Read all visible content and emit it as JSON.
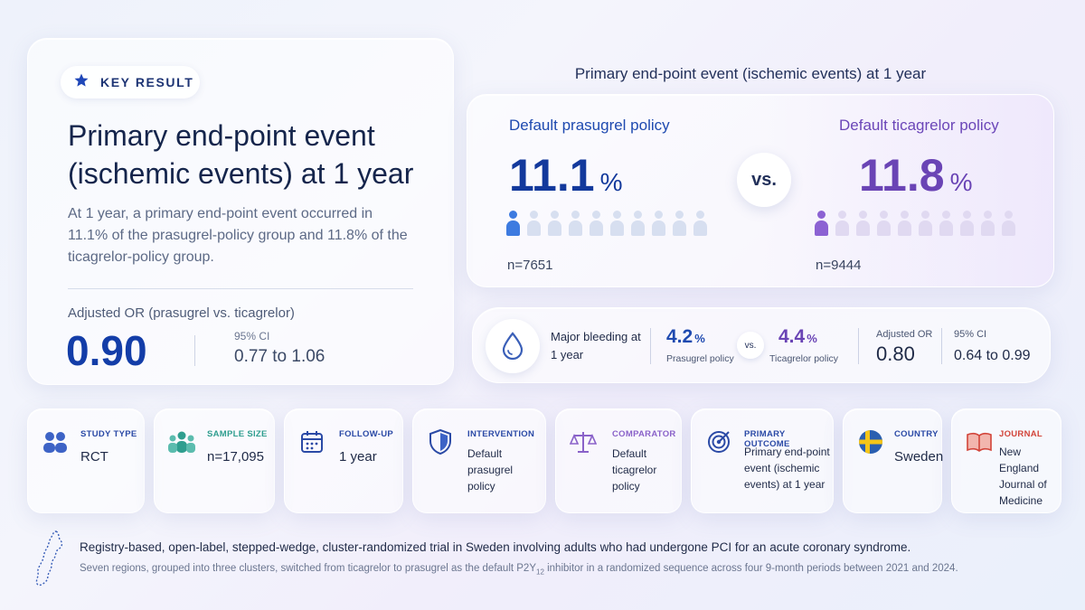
{
  "key_result": {
    "badge": "KEY RESULT",
    "title": "Primary end-point event (ischemic events) at 1 year",
    "description": "At 1 year, a primary end-point event occurred in 11.1% of the prasugrel-policy group and 11.8% of the ticagrelor-policy group.",
    "or_label": "Adjusted OR (prasugrel vs. ticagrelor)",
    "or_value": "0.90",
    "ci_label": "95% CI",
    "ci_value": "0.77 to 1.06"
  },
  "comparison": {
    "title": "Primary end-point event (ischemic events) at 1 year",
    "vs": "vs.",
    "arm_a": {
      "name": "Default prasugrel policy",
      "value": "11.1",
      "unit": "%",
      "n": "n=7651",
      "highlighted_of_10": 1
    },
    "arm_b": {
      "name": "Default ticagrelor policy",
      "value": "11.8",
      "unit": "%",
      "n": "n=9444",
      "highlighted_of_10": 1
    }
  },
  "bleeding": {
    "label": "Major bleeding at 1 year",
    "a_value": "4.2",
    "a_unit": "%",
    "a_label": "Prasugrel policy",
    "vs": "vs.",
    "b_value": "4.4",
    "b_unit": "%",
    "b_label": "Ticagrelor policy",
    "or_label": "Adjusted OR",
    "or_value": "0.80",
    "ci_label": "95% CI",
    "ci_value": "0.64 to 0.99"
  },
  "tiles": {
    "study_type": {
      "label": "STUDY TYPE",
      "value": "RCT",
      "icon": "people-icon",
      "color": "#2b4aa6"
    },
    "sample_size": {
      "label": "SAMPLE SIZE",
      "value": "n=17,095",
      "icon": "group-icon",
      "color": "#2f9e8f"
    },
    "follow_up": {
      "label": "FOLLOW-UP",
      "value": "1 year",
      "icon": "calendar-icon",
      "color": "#2b4aa6"
    },
    "intervention": {
      "label": "INTERVENTION",
      "value": "Default prasugrel policy",
      "icon": "shield-icon",
      "color": "#2b4aa6"
    },
    "comparator": {
      "label": "COMPARATOR",
      "value": "Default ticagrelor policy",
      "icon": "scale-icon",
      "color": "#8a62c9"
    },
    "primary_outcome": {
      "label": "PRIMARY OUTCOME",
      "value": "Primary end-point event (ischemic events) at 1 year",
      "icon": "target-icon",
      "color": "#2b4aa6"
    },
    "country": {
      "label": "COUNTRY",
      "value": "Sweden",
      "icon": "sweden-flag-icon",
      "color": "#2b4aa6"
    },
    "journal": {
      "label": "JOURNAL",
      "value": "New England Journal of Medicine",
      "icon": "book-icon",
      "color": "#d2453a"
    }
  },
  "footer": {
    "line1": "Registry-based, open-label, stepped-wedge, cluster-randomized trial in Sweden involving adults who had undergone PCI for an acute coronary syndrome.",
    "line2_before": "Seven regions, grouped into three clusters, switched from ticagrelor to prasugrel as the default P2Y",
    "line2_sub": "12",
    "line2_after": " inhibitor in a randomized sequence across four 9-month periods between 2021 and 2024."
  }
}
